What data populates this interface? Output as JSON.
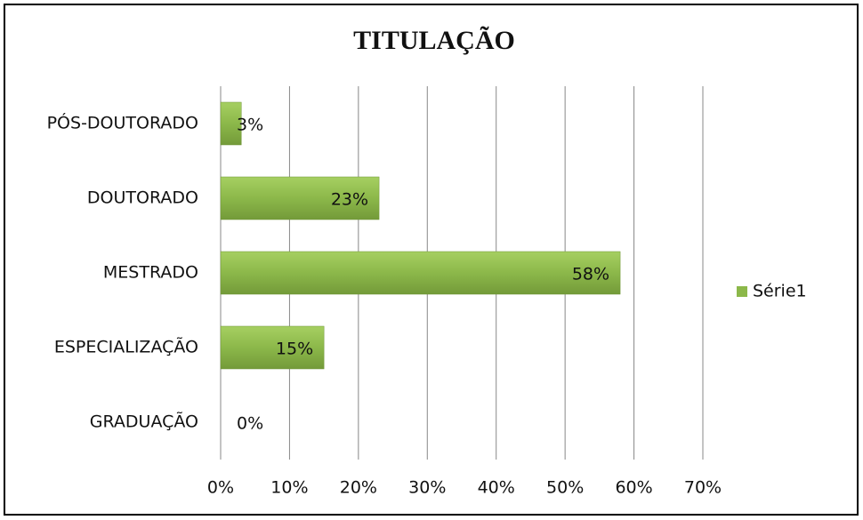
{
  "chart_data": {
    "type": "hbar",
    "title": "TITULAÇÃO",
    "categories": [
      "PÓS-DOUTORADO",
      "DOUTORADO",
      "MESTRADO",
      "ESPECIALIZAÇÃO",
      "GRADUAÇÃO"
    ],
    "series": [
      {
        "name": "Série1",
        "color": "#8cb84a",
        "values": [
          3,
          23,
          58,
          15,
          0
        ],
        "value_labels": [
          "3%",
          "23%",
          "58%",
          "15%",
          "0%"
        ]
      }
    ],
    "xlim": [
      0,
      70
    ],
    "xticks": [
      {
        "value": 0,
        "label": "0%"
      },
      {
        "value": 10,
        "label": "10%"
      },
      {
        "value": 20,
        "label": "20%"
      },
      {
        "value": 30,
        "label": "30%"
      },
      {
        "value": 40,
        "label": "40%"
      },
      {
        "value": 50,
        "label": "50%"
      },
      {
        "value": 60,
        "label": "60%"
      },
      {
        "value": 70,
        "label": "70%"
      }
    ],
    "grid": true,
    "legend": "right"
  }
}
